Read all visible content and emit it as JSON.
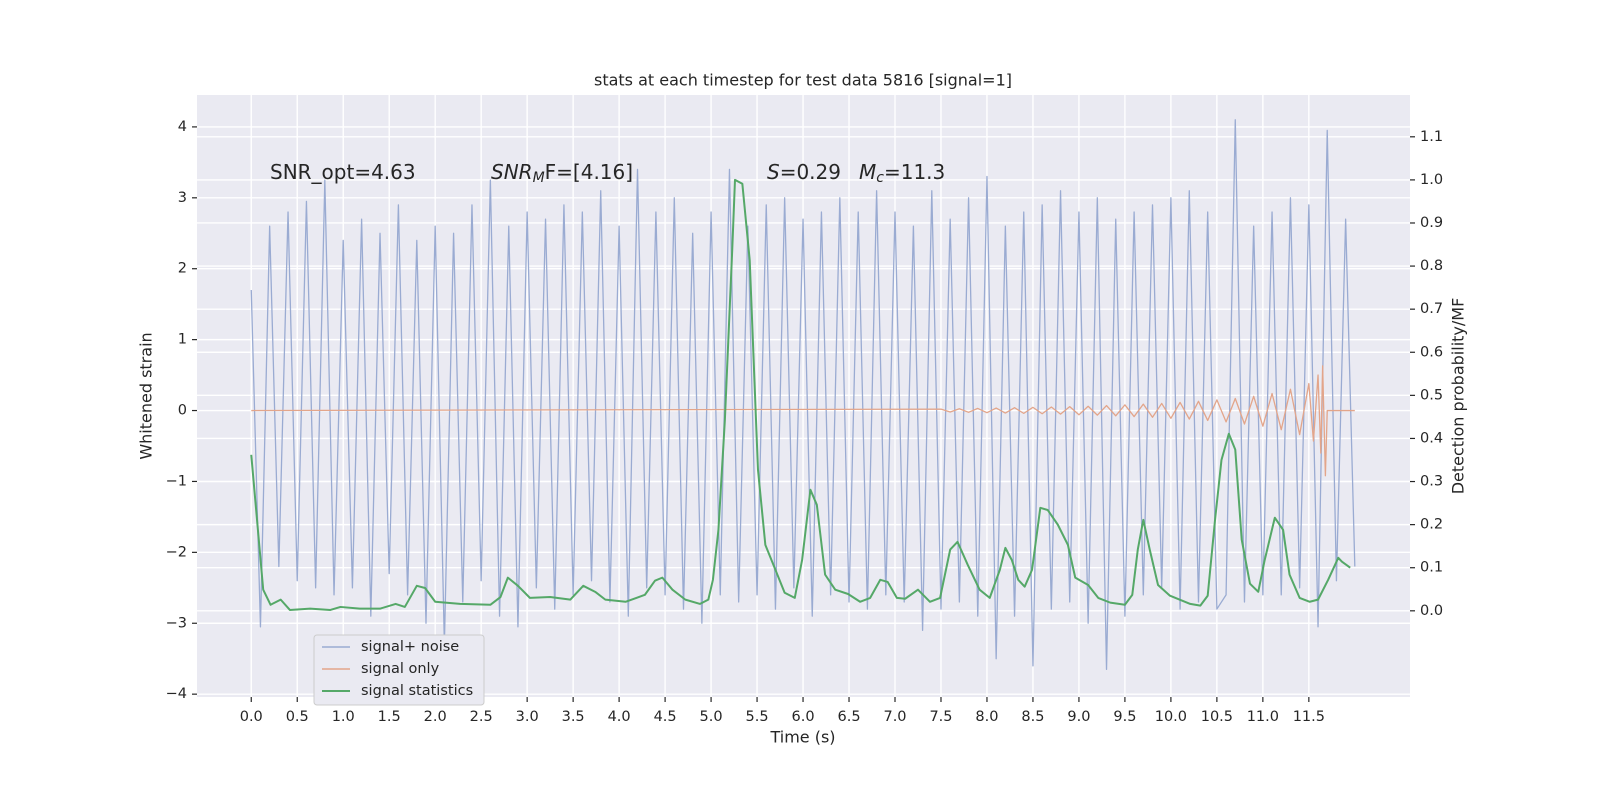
{
  "chart_data": {
    "type": "line",
    "title": "stats at each timestep for test data 5816 [signal=1]",
    "xlabel": "Time (s)",
    "ylabel": "Whitened strain",
    "y2label": "Detection probability/MF",
    "xlim": [
      -0.59,
      12.6
    ],
    "ylim": [
      -4.04,
      4.45
    ],
    "y2lim": [
      -0.2,
      1.197
    ],
    "xticks": [
      {
        "value": 0,
        "label": "0.0"
      },
      0.5,
      {
        "value": 1,
        "label": "1.0"
      },
      1.5,
      {
        "value": 2,
        "label": "2.0"
      },
      2.5,
      {
        "value": 3,
        "label": "3.0"
      },
      3.5,
      {
        "value": 4,
        "label": "4.0"
      },
      4.5,
      {
        "value": 5,
        "label": "5.0"
      },
      5.5,
      {
        "value": 6,
        "label": "6.0"
      },
      6.5,
      {
        "value": 7,
        "label": "7.0"
      },
      7.5,
      {
        "value": 8,
        "label": "8.0"
      },
      8.5,
      {
        "value": 9,
        "label": "9.0"
      },
      9.5,
      {
        "value": 10,
        "label": "10.0"
      },
      10.5,
      {
        "value": 11,
        "label": "11.0"
      },
      11.5
    ],
    "yticks": [
      {
        "value": -4,
        "label": "−4"
      },
      {
        "value": -3,
        "label": "−3"
      },
      {
        "value": -2,
        "label": "−2"
      },
      {
        "value": -1,
        "label": "−1"
      },
      0,
      1,
      2,
      3,
      4
    ],
    "y2ticks": [
      {
        "value": 0,
        "label": "0.0"
      },
      0.1,
      0.2,
      0.3,
      0.4,
      0.5,
      0.6,
      0.7,
      0.8,
      0.9,
      {
        "value": 1,
        "label": "1.0"
      },
      1.1
    ],
    "grid": true,
    "legend": "lower left",
    "annotations": [
      {
        "text": "SNR_opt=4.63"
      },
      {
        "base": "SNR",
        "sub": "M",
        "rest": "F=[4.16]"
      },
      {
        "base": "S",
        "rest": "=0.29"
      },
      {
        "base": "M",
        "sub": "c",
        "rest": "=11.3"
      }
    ],
    "series": [
      {
        "name": "signal+ noise",
        "color": "#9aabd2",
        "x": [
          0,
          0.1,
          0.2,
          0.3,
          0.4,
          0.5,
          0.6,
          0.7,
          0.8,
          0.9,
          1.0,
          1.1,
          1.2,
          1.3,
          1.4,
          1.5,
          1.6,
          1.7,
          1.8,
          1.9,
          2.0,
          2.1,
          2.2,
          2.3,
          2.4,
          2.5,
          2.6,
          2.7,
          2.8,
          2.9,
          3.0,
          3.1,
          3.2,
          3.3,
          3.4,
          3.5,
          3.6,
          3.7,
          3.8,
          3.9,
          4.0,
          4.1,
          4.2,
          4.3,
          4.4,
          4.5,
          4.6,
          4.7,
          4.8,
          4.9,
          5.0,
          5.1,
          5.2,
          5.3,
          5.4,
          5.5,
          5.6,
          5.7,
          5.8,
          5.9,
          6.0,
          6.1,
          6.2,
          6.3,
          6.4,
          6.5,
          6.6,
          6.7,
          6.8,
          6.9,
          7.0,
          7.1,
          7.2,
          7.3,
          7.4,
          7.5,
          7.6,
          7.7,
          7.8,
          7.9,
          8.0,
          8.1,
          8.2,
          8.3,
          8.4,
          8.5,
          8.6,
          8.7,
          8.8,
          8.9,
          9.0,
          9.1,
          9.2,
          9.3,
          9.4,
          9.5,
          9.6,
          9.7,
          9.8,
          9.9,
          10.0,
          10.1,
          10.2,
          10.3,
          10.4,
          10.5,
          10.6,
          10.7,
          10.8,
          10.9,
          11.0,
          11.1,
          11.2,
          11.3,
          11.4,
          11.5,
          11.6,
          11.7,
          11.8,
          11.9,
          12.0
        ],
        "values": [
          1.7,
          -3.05,
          2.6,
          -2.2,
          2.8,
          -2.4,
          2.95,
          -2.5,
          3.25,
          -2.6,
          2.4,
          -2.5,
          2.7,
          -2.9,
          2.5,
          -2.3,
          2.9,
          -2.6,
          2.4,
          -3.0,
          2.6,
          -3.3,
          2.5,
          -2.7,
          2.9,
          -2.4,
          3.25,
          -2.9,
          2.6,
          -3.05,
          2.8,
          -2.5,
          2.7,
          -2.8,
          2.9,
          -2.6,
          2.8,
          -2.4,
          3.1,
          -2.7,
          2.6,
          -2.9,
          3.4,
          -2.5,
          2.8,
          -2.6,
          3.0,
          -2.8,
          2.5,
          -3.0,
          2.8,
          -2.6,
          3.4,
          -2.7,
          2.6,
          -2.6,
          2.9,
          -2.8,
          3.0,
          -2.5,
          2.7,
          -2.9,
          2.8,
          -2.6,
          3.0,
          -2.7,
          2.8,
          -2.8,
          3.1,
          -2.6,
          2.8,
          -2.7,
          2.6,
          -3.1,
          3.1,
          -2.8,
          2.7,
          -2.7,
          3.0,
          -2.9,
          3.3,
          -3.5,
          2.6,
          -2.9,
          2.8,
          -3.6,
          2.9,
          -2.8,
          3.1,
          -2.7,
          2.8,
          -3.0,
          3.0,
          -3.65,
          2.7,
          -2.9,
          2.8,
          -2.6,
          2.9,
          -2.5,
          3.0,
          -2.8,
          3.1,
          -2.7,
          2.8,
          -2.8,
          -2.6,
          4.1,
          -2.7,
          2.6,
          -2.6,
          2.8,
          -2.6,
          3.0,
          -2.5,
          2.9,
          -3.05,
          3.95,
          -2.4,
          2.7,
          -2.2
        ]
      },
      {
        "name": "signal only",
        "color": "#e3a58a",
        "x": [
          0,
          7.5,
          7.6,
          7.7,
          7.8,
          7.9,
          8.0,
          8.1,
          8.2,
          8.3,
          8.4,
          8.5,
          8.6,
          8.7,
          8.8,
          8.9,
          9.0,
          9.1,
          9.2,
          9.3,
          9.4,
          9.5,
          9.6,
          9.7,
          9.8,
          9.9,
          10.0,
          10.1,
          10.2,
          10.3,
          10.4,
          10.5,
          10.6,
          10.7,
          10.8,
          10.9,
          11.0,
          11.1,
          11.2,
          11.3,
          11.4,
          11.5,
          11.55,
          11.6,
          11.63,
          11.65,
          11.68,
          11.7,
          12.0
        ],
        "values": [
          0,
          0.02,
          -0.02,
          0.025,
          -0.025,
          0.03,
          -0.03,
          0.035,
          -0.035,
          0.04,
          -0.04,
          0.045,
          -0.045,
          0.05,
          -0.05,
          0.055,
          -0.06,
          0.06,
          -0.065,
          0.07,
          -0.075,
          0.08,
          -0.085,
          0.09,
          -0.095,
          0.1,
          -0.11,
          0.115,
          -0.12,
          0.13,
          -0.14,
          0.15,
          -0.16,
          0.17,
          -0.19,
          0.2,
          -0.22,
          0.24,
          -0.27,
          0.3,
          -0.34,
          0.38,
          -0.43,
          0.5,
          -0.6,
          0.63,
          -0.92,
          0,
          0
        ]
      },
      {
        "name": "signal statistics",
        "color": "#55a868",
        "axis": "y2",
        "x": [
          0,
          0.13,
          0.21,
          0.32,
          0.42,
          0.64,
          0.86,
          0.97,
          1.18,
          1.4,
          1.57,
          1.67,
          1.8,
          1.89,
          2.0,
          2.27,
          2.6,
          2.71,
          2.79,
          2.9,
          3.03,
          3.25,
          3.47,
          3.61,
          3.74,
          3.85,
          4.07,
          4.28,
          4.39,
          4.47,
          4.58,
          4.72,
          4.88,
          4.97,
          5.02,
          5.08,
          5.15,
          5.23,
          5.26,
          5.34,
          5.42,
          5.51,
          5.59,
          5.7,
          5.8,
          5.91,
          5.99,
          6.08,
          6.15,
          6.24,
          6.35,
          6.49,
          6.62,
          6.73,
          6.84,
          6.92,
          7.02,
          7.11,
          7.25,
          7.38,
          7.49,
          7.6,
          7.68,
          7.79,
          7.92,
          8.03,
          8.14,
          8.2,
          8.27,
          8.34,
          8.41,
          8.49,
          8.58,
          8.66,
          8.77,
          8.88,
          8.96,
          9.1,
          9.21,
          9.34,
          9.5,
          9.58,
          9.64,
          9.7,
          9.77,
          9.86,
          9.99,
          10.21,
          10.32,
          10.4,
          10.48,
          10.55,
          10.63,
          10.7,
          10.77,
          10.86,
          10.95,
          11.02,
          11.13,
          11.22,
          11.29,
          11.4,
          11.51,
          11.6,
          11.71,
          11.82,
          11.86,
          11.95
        ],
        "values": [
          0.362,
          0.049,
          0.014,
          0.026,
          0.002,
          0.005,
          0.002,
          0.009,
          0.005,
          0.005,
          0.016,
          0.009,
          0.058,
          0.053,
          0.021,
          0.016,
          0.014,
          0.032,
          0.077,
          0.058,
          0.03,
          0.032,
          0.026,
          0.058,
          0.044,
          0.026,
          0.021,
          0.037,
          0.07,
          0.077,
          0.049,
          0.026,
          0.016,
          0.026,
          0.072,
          0.188,
          0.443,
          0.838,
          1.0,
          0.991,
          0.814,
          0.327,
          0.153,
          0.095,
          0.042,
          0.03,
          0.118,
          0.281,
          0.246,
          0.084,
          0.049,
          0.039,
          0.021,
          0.03,
          0.072,
          0.067,
          0.03,
          0.028,
          0.049,
          0.021,
          0.03,
          0.142,
          0.16,
          0.107,
          0.049,
          0.03,
          0.095,
          0.146,
          0.118,
          0.072,
          0.056,
          0.095,
          0.239,
          0.234,
          0.2,
          0.153,
          0.077,
          0.06,
          0.03,
          0.019,
          0.014,
          0.037,
          0.142,
          0.211,
          0.142,
          0.06,
          0.035,
          0.016,
          0.012,
          0.035,
          0.211,
          0.35,
          0.411,
          0.374,
          0.165,
          0.063,
          0.044,
          0.118,
          0.216,
          0.188,
          0.084,
          0.03,
          0.021,
          0.026,
          0.072,
          0.123,
          0.114,
          0.1
        ]
      }
    ]
  }
}
